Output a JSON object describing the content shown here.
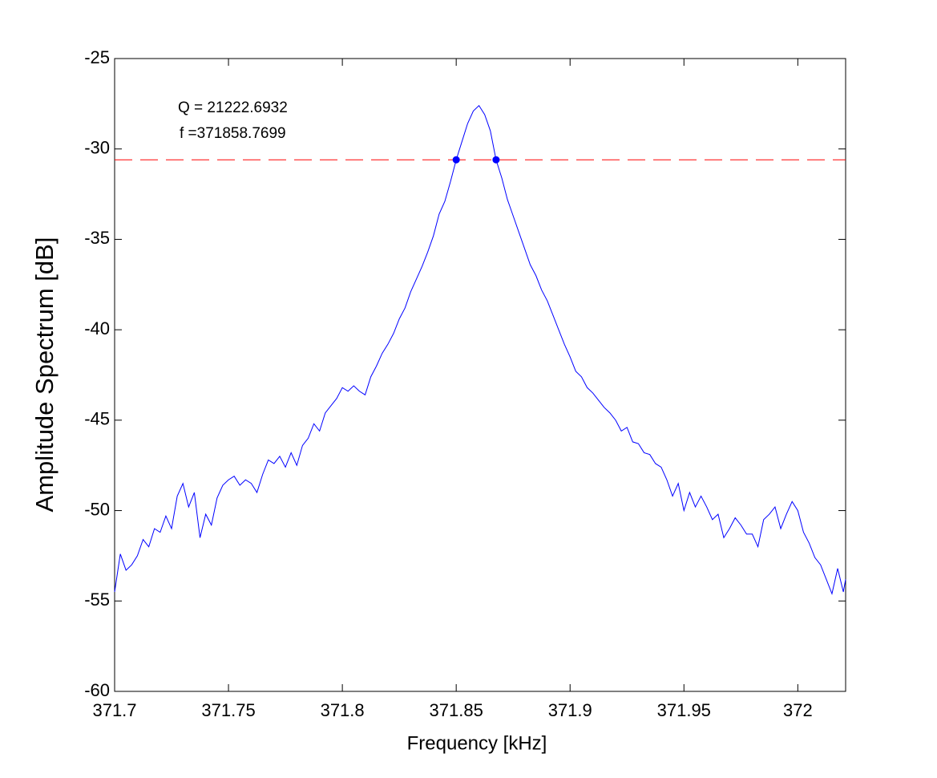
{
  "chart_data": {
    "type": "line",
    "x_label": "Frequency [kHz]",
    "y_label": "Amplitude Spectrum [dB]",
    "annotations": [
      "Q = 21222.6932",
      "f =371858.7699"
    ],
    "color": "#0000ff",
    "x": [
      371.7,
      371.7025,
      371.705,
      371.7075,
      371.71,
      371.7125,
      371.715,
      371.7175,
      371.72,
      371.7225,
      371.725,
      371.7275,
      371.73,
      371.7325,
      371.735,
      371.7375,
      371.74,
      371.7425,
      371.745,
      371.7475,
      371.75,
      371.7525,
      371.755,
      371.7575,
      371.76,
      371.7625,
      371.765,
      371.7675,
      371.77,
      371.7725,
      371.775,
      371.7775,
      371.78,
      371.7825,
      371.785,
      371.7875,
      371.79,
      371.7925,
      371.795,
      371.7975,
      371.8,
      371.8025,
      371.805,
      371.8075,
      371.81,
      371.8125,
      371.815,
      371.8175,
      371.82,
      371.8225,
      371.825,
      371.8275,
      371.83,
      371.8325,
      371.835,
      371.8375,
      371.84,
      371.8425,
      371.845,
      371.8475,
      371.85,
      371.8525,
      371.855,
      371.8575,
      371.86,
      371.8625,
      371.865,
      371.8675,
      371.87,
      371.8725,
      371.875,
      371.8775,
      371.88,
      371.8825,
      371.885,
      371.8875,
      371.89,
      371.8925,
      371.895,
      371.8975,
      371.9,
      371.9025,
      371.905,
      371.9075,
      371.91,
      371.9125,
      371.915,
      371.9175,
      371.92,
      371.9225,
      371.925,
      371.9275,
      371.93,
      371.9325,
      371.935,
      371.9375,
      371.94,
      371.9425,
      371.945,
      371.9475,
      371.95,
      371.9525,
      371.955,
      371.9575,
      371.96,
      371.9625,
      371.965,
      371.9675,
      371.97,
      371.9725,
      371.975,
      371.9775,
      371.98,
      371.9825,
      371.985,
      371.9875,
      371.99,
      371.9925,
      371.995,
      371.9975,
      372.0,
      372.0025,
      372.005,
      372.0075,
      372.01,
      372.0125,
      372.015,
      372.0175,
      372.02,
      372.021
    ],
    "values": [
      -54.5,
      -52.4,
      -53.3,
      -53.0,
      -52.5,
      -51.6,
      -52.0,
      -51.0,
      -51.2,
      -50.3,
      -51.0,
      -49.2,
      -48.5,
      -49.8,
      -49.0,
      -51.5,
      -50.2,
      -50.8,
      -49.3,
      -48.6,
      -48.3,
      -48.1,
      -48.6,
      -48.3,
      -48.5,
      -49.0,
      -48.0,
      -47.2,
      -47.4,
      -47.0,
      -47.6,
      -46.8,
      -47.5,
      -46.4,
      -46.0,
      -45.2,
      -45.6,
      -44.6,
      -44.2,
      -43.8,
      -43.2,
      -43.4,
      -43.1,
      -43.4,
      -43.6,
      -42.6,
      -42.0,
      -41.3,
      -40.8,
      -40.2,
      -39.4,
      -38.8,
      -37.9,
      -37.2,
      -36.5,
      -35.7,
      -34.8,
      -33.6,
      -32.9,
      -31.8,
      -30.6,
      -29.6,
      -28.6,
      -27.9,
      -27.6,
      -28.1,
      -29.0,
      -30.6,
      -31.6,
      -32.8,
      -33.7,
      -34.6,
      -35.5,
      -36.4,
      -37.0,
      -37.8,
      -38.4,
      -39.2,
      -40.0,
      -40.8,
      -41.5,
      -42.3,
      -42.6,
      -43.2,
      -43.5,
      -43.9,
      -44.3,
      -44.6,
      -45.0,
      -45.6,
      -45.4,
      -46.2,
      -46.3,
      -46.8,
      -46.9,
      -47.4,
      -47.6,
      -48.3,
      -49.2,
      -48.5,
      -50.0,
      -49.0,
      -49.8,
      -49.2,
      -49.8,
      -50.5,
      -50.2,
      -51.5,
      -51.0,
      -50.4,
      -50.8,
      -51.3,
      -51.3,
      -52.0,
      -50.5,
      -50.2,
      -49.8,
      -51.0,
      -50.2,
      -49.5,
      -50.0,
      -51.2,
      -51.8,
      -52.6,
      -53.0,
      -53.8,
      -54.6,
      -53.2,
      -54.5,
      -53.8
    ],
    "reference_line": {
      "value": -30.6,
      "color": "#ff0000"
    },
    "markers": {
      "x": [
        371.85,
        371.8675
      ],
      "values": [
        -30.6,
        -30.6
      ],
      "color": "#0000ff"
    },
    "xlim": [
      371.7,
      372.021
    ],
    "ylim": [
      -60,
      -25
    ],
    "xticks": [
      371.7,
      371.75,
      371.8,
      371.85,
      371.9,
      371.95,
      372
    ],
    "yticks": [
      -60,
      -55,
      -50,
      -45,
      -40,
      -35,
      -30,
      -25
    ]
  }
}
